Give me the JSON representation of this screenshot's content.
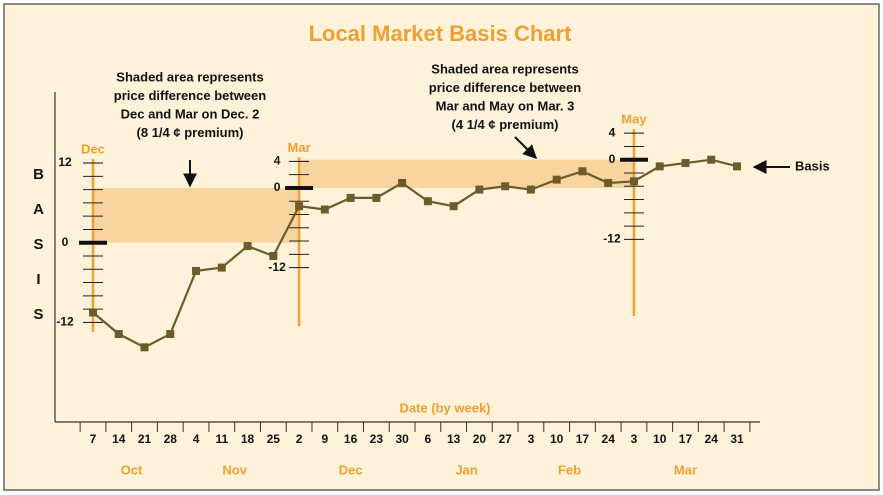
{
  "chart_data": {
    "type": "line",
    "title": "Local Market Basis Chart",
    "ylabel": "BASIS",
    "xlabel": "Date (by week)",
    "months": [
      {
        "name": "Oct",
        "weeks": [
          7,
          14,
          21,
          28
        ]
      },
      {
        "name": "Nov",
        "weeks": [
          4,
          11,
          18,
          25
        ]
      },
      {
        "name": "Dec",
        "weeks": [
          2,
          9,
          16,
          23,
          30
        ]
      },
      {
        "name": "Jan",
        "weeks": [
          6,
          13,
          20,
          27
        ]
      },
      {
        "name": "Feb",
        "weeks": [
          3,
          10,
          17,
          24
        ]
      },
      {
        "name": "Mar",
        "weeks": [
          3,
          10,
          17,
          24,
          31
        ]
      }
    ],
    "series": [
      {
        "name": "Basis",
        "color": "#6e5b2b",
        "values": [
          -10.5,
          -13.75,
          -15.75,
          -13.75,
          -4.25,
          -3.75,
          -0.5,
          -2,
          5.5,
          5,
          6.75,
          6.75,
          9,
          6.25,
          5.5,
          8,
          8.5,
          8,
          9.5,
          10.75,
          9,
          9.25,
          11.5,
          12,
          12.5,
          11.5
        ]
      }
    ],
    "ylim": [
      -27,
      23
    ],
    "futures_scales": [
      {
        "name": "Dec",
        "ticks": [
          12,
          0,
          -12
        ]
      },
      {
        "name": "Mar",
        "ticks": [
          4,
          0,
          -12
        ],
        "premium": 8.25
      },
      {
        "name": "May",
        "ticks": [
          4,
          0,
          -12
        ],
        "premium": 4.25
      }
    ],
    "annotations": [
      {
        "lines": [
          "Shaded area represents",
          "price difference between",
          "Dec and Mar on Dec. 2",
          "(8 1/4 ¢ premium)"
        ]
      },
      {
        "lines": [
          "Shaded area represents",
          "price difference between",
          "Mar and May on Mar. 3",
          "(4 1/4 ¢ premium)"
        ]
      }
    ],
    "scale_color": "#f0a030",
    "shade_color": "#f8d49f"
  }
}
